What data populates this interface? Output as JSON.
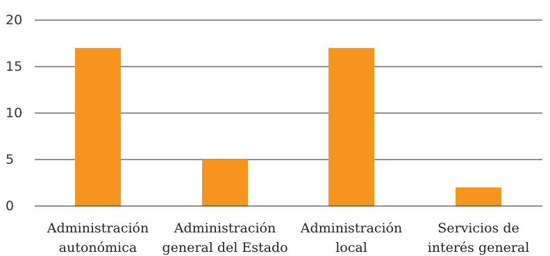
{
  "chart_data": {
    "type": "bar",
    "categories": [
      [
        "Administración",
        "autonómica"
      ],
      [
        "Administración",
        "general del Estado"
      ],
      [
        "Administración",
        "local"
      ],
      [
        "Servicios de",
        "interés general"
      ]
    ],
    "values": [
      17,
      5,
      17,
      2
    ],
    "ylim": [
      0,
      20
    ],
    "yticks": [
      0,
      5,
      10,
      15,
      20
    ],
    "grid": true,
    "bar_color": "#f7941d",
    "grid_color": "#222222",
    "title": "",
    "xlabel": "",
    "ylabel": ""
  }
}
